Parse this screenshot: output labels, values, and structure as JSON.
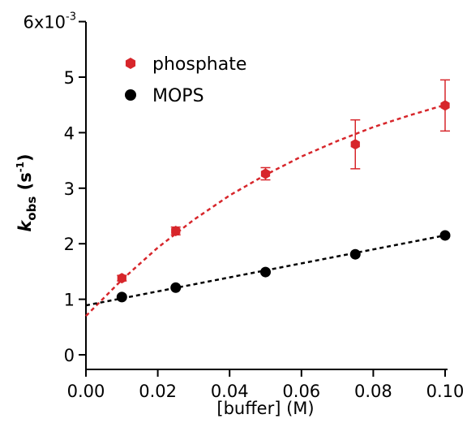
{
  "chart_data": {
    "type": "scatter",
    "xlabel": "[buffer] (M)",
    "ylabel": {
      "main": "k",
      "sub": "obs",
      "unit_open": " (s",
      "unit_sup": "-1",
      "unit_close": ")"
    },
    "ylim": [
      0,
      6
    ],
    "xlim": [
      0,
      0.1
    ],
    "x_ticks": [
      "0.00",
      "0.02",
      "0.04",
      "0.06",
      "0.08",
      "0.10"
    ],
    "x_tick_values": [
      0,
      0.02,
      0.04,
      0.06,
      0.08,
      0.1
    ],
    "y_ticks": [
      "0",
      "1",
      "2",
      "3",
      "4",
      "5"
    ],
    "y_tick_values": [
      0,
      1,
      2,
      3,
      4,
      5
    ],
    "y_top_label": {
      "base": "6x10",
      "exp": "-3",
      "value": 6
    },
    "y_scale_note": "values in units of 10^-3 s^-1",
    "grid": false,
    "legend": "top-left",
    "series": [
      {
        "name": "phosphate",
        "color": "#d7262b",
        "marker": "hexagon",
        "x": [
          0.01,
          0.025,
          0.05,
          0.075,
          0.1
        ],
        "y": [
          1.38,
          2.23,
          3.26,
          3.79,
          4.49
        ],
        "err": [
          0.05,
          0.07,
          0.11,
          0.44,
          0.46
        ],
        "fit": {
          "style": "dashed",
          "x": [
            0,
            0.01,
            0.02,
            0.03,
            0.04,
            0.05,
            0.06,
            0.07,
            0.08,
            0.09,
            0.1
          ],
          "y": [
            0.7,
            1.35,
            1.93,
            2.43,
            2.87,
            3.24,
            3.57,
            3.85,
            4.1,
            4.31,
            4.5
          ]
        }
      },
      {
        "name": "MOPS",
        "color": "#000000",
        "marker": "circle",
        "x": [
          0.01,
          0.025,
          0.05,
          0.075,
          0.1
        ],
        "y": [
          1.04,
          1.21,
          1.49,
          1.81,
          2.15
        ],
        "fit": {
          "style": "dashed",
          "x": [
            0,
            0.1
          ],
          "y": [
            0.89,
            2.15
          ]
        }
      }
    ]
  }
}
